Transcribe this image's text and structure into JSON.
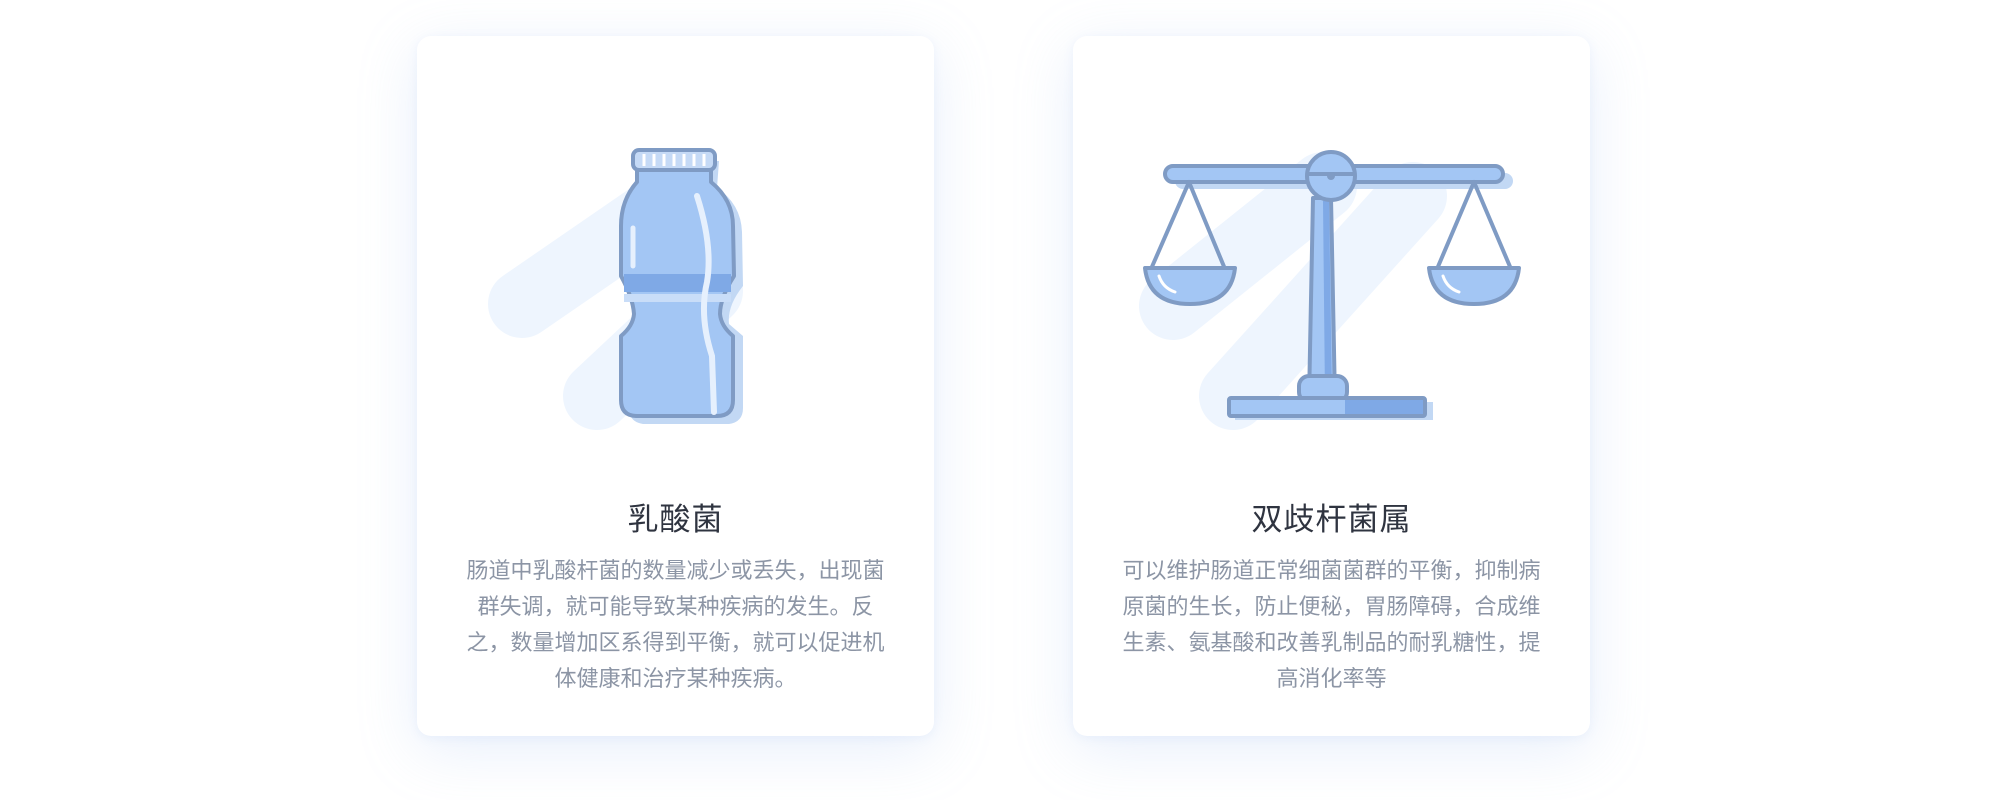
{
  "colors": {
    "accent": "#a3c6f4",
    "accent_dark": "#7f9bc4",
    "bg_shape": "#eef5fe",
    "title": "#2f3440",
    "text": "#8c95a5"
  },
  "cards": [
    {
      "icon": "bottle-icon",
      "title": "乳酸菌",
      "description": "肠道中乳酸杆菌的数量减少或丢失，出现菌群失调，就可能导致某种疾病的发生。反之，数量增加区系得到平衡，就可以促进机体健康和治疗某种疾病。"
    },
    {
      "icon": "scale-icon",
      "title": "双歧杆菌属",
      "description": "可以维护肠道正常细菌菌群的平衡，抑制病原菌的生长，防止便秘，胃肠障碍，合成维生素、氨基酸和改善乳制品的耐乳糖性，提高消化率等"
    }
  ]
}
